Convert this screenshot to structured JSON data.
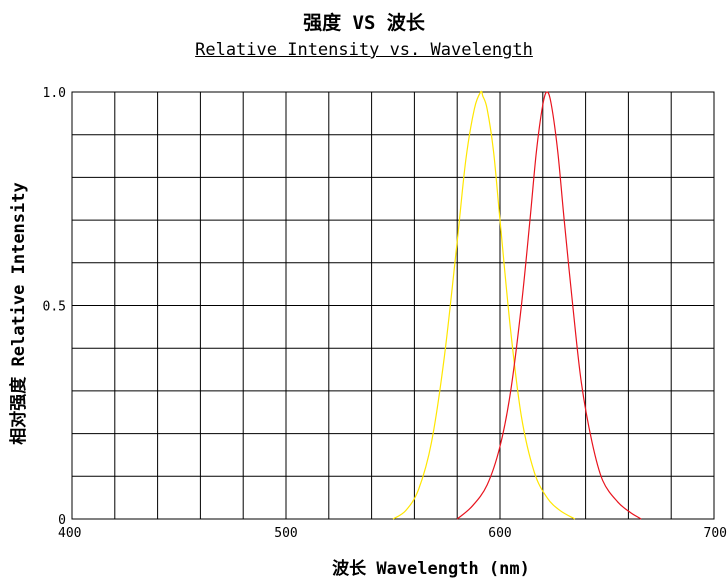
{
  "chart_data": {
    "type": "line",
    "title": "强度 VS 波长",
    "subtitle": "Relative Intensity vs. Wavelength",
    "xlabel": "波长  Wavelength (nm)",
    "ylabel": "相对强度  Relative Intensity",
    "xlim": [
      400,
      700
    ],
    "ylim": [
      0,
      1.0
    ],
    "x_ticks": [
      "400",
      "500",
      "600",
      "700"
    ],
    "y_ticks": [
      "0",
      "0.5",
      "1.0"
    ],
    "grid": true,
    "series": [
      {
        "color": "#ffe600",
        "x": [
          550,
          556,
          562,
          568,
          574,
          580,
          584,
          588,
          591,
          592,
          594,
          597,
          600,
          605,
          610,
          616,
          622,
          628,
          635
        ],
        "y": [
          0.0,
          0.02,
          0.07,
          0.18,
          0.38,
          0.65,
          0.84,
          0.96,
          1.0,
          0.99,
          0.96,
          0.86,
          0.7,
          0.44,
          0.24,
          0.11,
          0.05,
          0.02,
          0.0
        ]
      },
      {
        "color": "#e8141e",
        "x": [
          580,
          587,
          594,
          600,
          605,
          610,
          614,
          617,
          620,
          622,
          624,
          627,
          630,
          634,
          638,
          643,
          648,
          655,
          661,
          666
        ],
        "y": [
          0.0,
          0.03,
          0.08,
          0.17,
          0.3,
          0.5,
          0.7,
          0.86,
          0.97,
          1.0,
          0.97,
          0.86,
          0.7,
          0.5,
          0.32,
          0.18,
          0.09,
          0.04,
          0.015,
          0.0
        ]
      }
    ]
  }
}
